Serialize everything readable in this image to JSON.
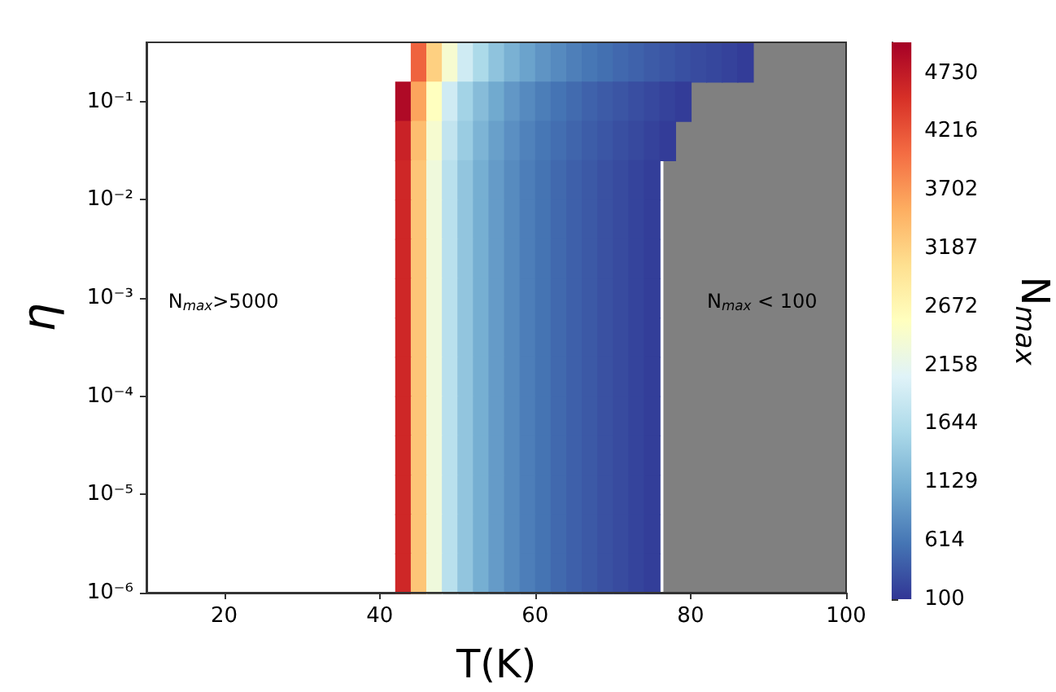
{
  "chart_data": {
    "type": "heatmap",
    "xlabel": "T(K)",
    "ylabel": "η",
    "clabel": "N$_{max}$",
    "x": [
      43,
      45,
      47,
      49,
      51,
      53,
      55,
      57,
      59,
      61,
      63,
      65,
      67,
      69,
      71,
      73,
      75,
      77,
      79,
      81,
      83,
      85,
      87
    ],
    "cells": [
      [
        null,
        4100,
        3200,
        2400,
        1900,
        1580,
        1320,
        1130,
        990,
        860,
        770,
        680,
        610,
        550,
        490,
        440,
        390,
        350,
        300,
        265,
        230,
        190,
        150
      ],
      [
        4900,
        3600,
        2550,
        1900,
        1500,
        1250,
        1050,
        890,
        770,
        665,
        585,
        510,
        445,
        385,
        340,
        290,
        240,
        195,
        150,
        null,
        null,
        null,
        null
      ],
      [
        4650,
        3380,
        2400,
        1780,
        1420,
        1160,
        965,
        820,
        705,
        610,
        535,
        465,
        400,
        345,
        295,
        245,
        195,
        145,
        null,
        null,
        null,
        null,
        null
      ],
      [
        4600,
        3300,
        2300,
        1700,
        1350,
        1100,
        920,
        780,
        670,
        580,
        500,
        430,
        370,
        310,
        260,
        210,
        160,
        null,
        null,
        null,
        null,
        null,
        null
      ],
      [
        4600,
        3300,
        2300,
        1700,
        1350,
        1100,
        920,
        780,
        670,
        580,
        500,
        430,
        370,
        310,
        260,
        210,
        160,
        null,
        null,
        null,
        null,
        null,
        null
      ],
      [
        4600,
        3300,
        2300,
        1700,
        1350,
        1100,
        920,
        780,
        670,
        580,
        500,
        430,
        370,
        310,
        260,
        210,
        160,
        null,
        null,
        null,
        null,
        null,
        null
      ],
      [
        4600,
        3300,
        2300,
        1700,
        1350,
        1100,
        920,
        780,
        670,
        580,
        500,
        430,
        370,
        310,
        260,
        210,
        160,
        null,
        null,
        null,
        null,
        null,
        null
      ],
      [
        4600,
        3300,
        2300,
        1700,
        1350,
        1100,
        920,
        780,
        670,
        580,
        500,
        430,
        370,
        310,
        260,
        210,
        160,
        null,
        null,
        null,
        null,
        null,
        null
      ],
      [
        4600,
        3300,
        2300,
        1700,
        1350,
        1100,
        920,
        780,
        670,
        580,
        500,
        430,
        370,
        310,
        260,
        210,
        160,
        null,
        null,
        null,
        null,
        null,
        null
      ],
      [
        4600,
        3300,
        2300,
        1700,
        1350,
        1100,
        920,
        780,
        670,
        580,
        500,
        430,
        370,
        310,
        260,
        210,
        160,
        null,
        null,
        null,
        null,
        null,
        null
      ],
      [
        4600,
        3300,
        2300,
        1700,
        1350,
        1100,
        920,
        780,
        670,
        580,
        500,
        430,
        370,
        310,
        260,
        210,
        160,
        null,
        null,
        null,
        null,
        null,
        null
      ],
      [
        4600,
        3300,
        2300,
        1700,
        1350,
        1100,
        920,
        780,
        670,
        580,
        500,
        430,
        370,
        310,
        260,
        210,
        160,
        null,
        null,
        null,
        null,
        null,
        null
      ],
      [
        4600,
        3300,
        2300,
        1700,
        1350,
        1100,
        920,
        780,
        670,
        580,
        500,
        430,
        370,
        310,
        260,
        210,
        160,
        null,
        null,
        null,
        null,
        null,
        null
      ],
      [
        4600,
        3300,
        2300,
        1700,
        1350,
        1100,
        920,
        780,
        670,
        580,
        500,
        430,
        370,
        310,
        260,
        210,
        160,
        null,
        null,
        null,
        null,
        null,
        null
      ]
    ],
    "xlim": [
      10,
      100
    ],
    "xticks": [
      20,
      40,
      60,
      80,
      100
    ],
    "ylim": [
      1e-06,
      0.4
    ],
    "log": "y",
    "yticks": [
      {
        "value": 1e-06,
        "label": "10⁻⁶"
      },
      {
        "value": 1e-05,
        "label": "10⁻⁵"
      },
      {
        "value": 0.0001,
        "label": "10⁻⁴"
      },
      {
        "value": 0.001,
        "label": "10⁻³"
      },
      {
        "value": 0.01,
        "label": "10⁻²"
      },
      {
        "value": 0.1,
        "label": "10⁻¹"
      }
    ],
    "clim": [
      100,
      5000
    ],
    "cticks": [
      100,
      614,
      1129,
      1644,
      2158,
      2672,
      3187,
      3702,
      4216,
      4730
    ],
    "bands": [
      {
        "axis": "x",
        "from": 76.5,
        "to": 100,
        "color": "#808080"
      }
    ],
    "annotations": [
      "N$_{max}$>5000",
      "N$_{max}$ < 100"
    ],
    "grid": false
  }
}
